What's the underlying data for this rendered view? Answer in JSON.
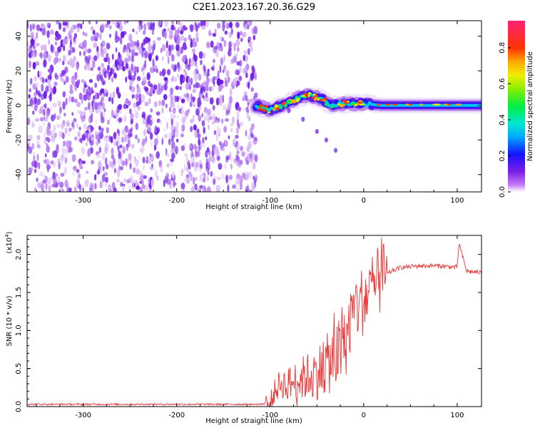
{
  "title": "C2E1.2023.167.20.36.G29",
  "chart_data": [
    {
      "type": "heatmap",
      "xlabel": "Height of straight line (km)",
      "ylabel": "Frequency (Hz)",
      "xlim": [
        -360,
        126
      ],
      "ylim": [
        -50,
        49
      ],
      "xticks": [
        -300,
        -200,
        -100,
        0,
        100
      ],
      "yticks": [
        -40,
        -20,
        0,
        20,
        40
      ],
      "colorbar": {
        "label": "Normalized spectral amplitude",
        "range": [
          0,
          0.95
        ],
        "ticks": [
          "0.0",
          "0.2",
          "0.4",
          "0.6",
          "0.8"
        ]
      },
      "regions": [
        {
          "name": "noise-speckle",
          "x_range": [
            -360,
            -115
          ],
          "f_range": [
            -50,
            49
          ],
          "amplitude_range": [
            0.02,
            0.2
          ]
        },
        {
          "name": "signal-track",
          "x": [
            -115,
            -100,
            -80,
            -60,
            -45,
            -35,
            -25,
            -10,
            0,
            20,
            50,
            100,
            126
          ],
          "f": [
            0,
            -3,
            2,
            6,
            4,
            0,
            1,
            1,
            1,
            0,
            0,
            0,
            0
          ],
          "peak_amplitude": 0.9
        },
        {
          "name": "secondary-branch",
          "x": [
            -80,
            -65,
            -50,
            -40,
            -30
          ],
          "f": [
            -3,
            -8,
            -15,
            -20,
            -26
          ],
          "amplitude": 0.15
        }
      ]
    },
    {
      "type": "line",
      "xlabel": "Height of straight line (km)",
      "ylabel": "SNR (10 * v/v)",
      "scale_label": "(x10",
      "scale_exp": "4",
      "scale_close": ")",
      "xlim": [
        -360,
        126
      ],
      "ylim": [
        0,
        2.25
      ],
      "xticks": [
        -300,
        -200,
        -100,
        0,
        100
      ],
      "yticks": [
        "0.0",
        "0.5",
        "1.0",
        "1.5",
        "2.0"
      ],
      "color": "#ee3333",
      "x": [
        -360,
        -300,
        -200,
        -110,
        -100,
        -95,
        -90,
        -80,
        -70,
        -60,
        -50,
        -40,
        -30,
        -20,
        -15,
        -10,
        -5,
        0,
        10,
        20,
        30,
        40,
        60,
        80,
        100,
        102,
        110,
        126
      ],
      "y": [
        0.03,
        0.03,
        0.03,
        0.03,
        0.05,
        0.2,
        0.3,
        0.3,
        0.35,
        0.4,
        0.45,
        0.55,
        0.65,
        0.8,
        1.1,
        1.3,
        1.35,
        1.4,
        1.55,
        1.7,
        1.78,
        1.83,
        1.85,
        1.85,
        1.83,
        2.15,
        1.78,
        1.76
      ]
    }
  ]
}
